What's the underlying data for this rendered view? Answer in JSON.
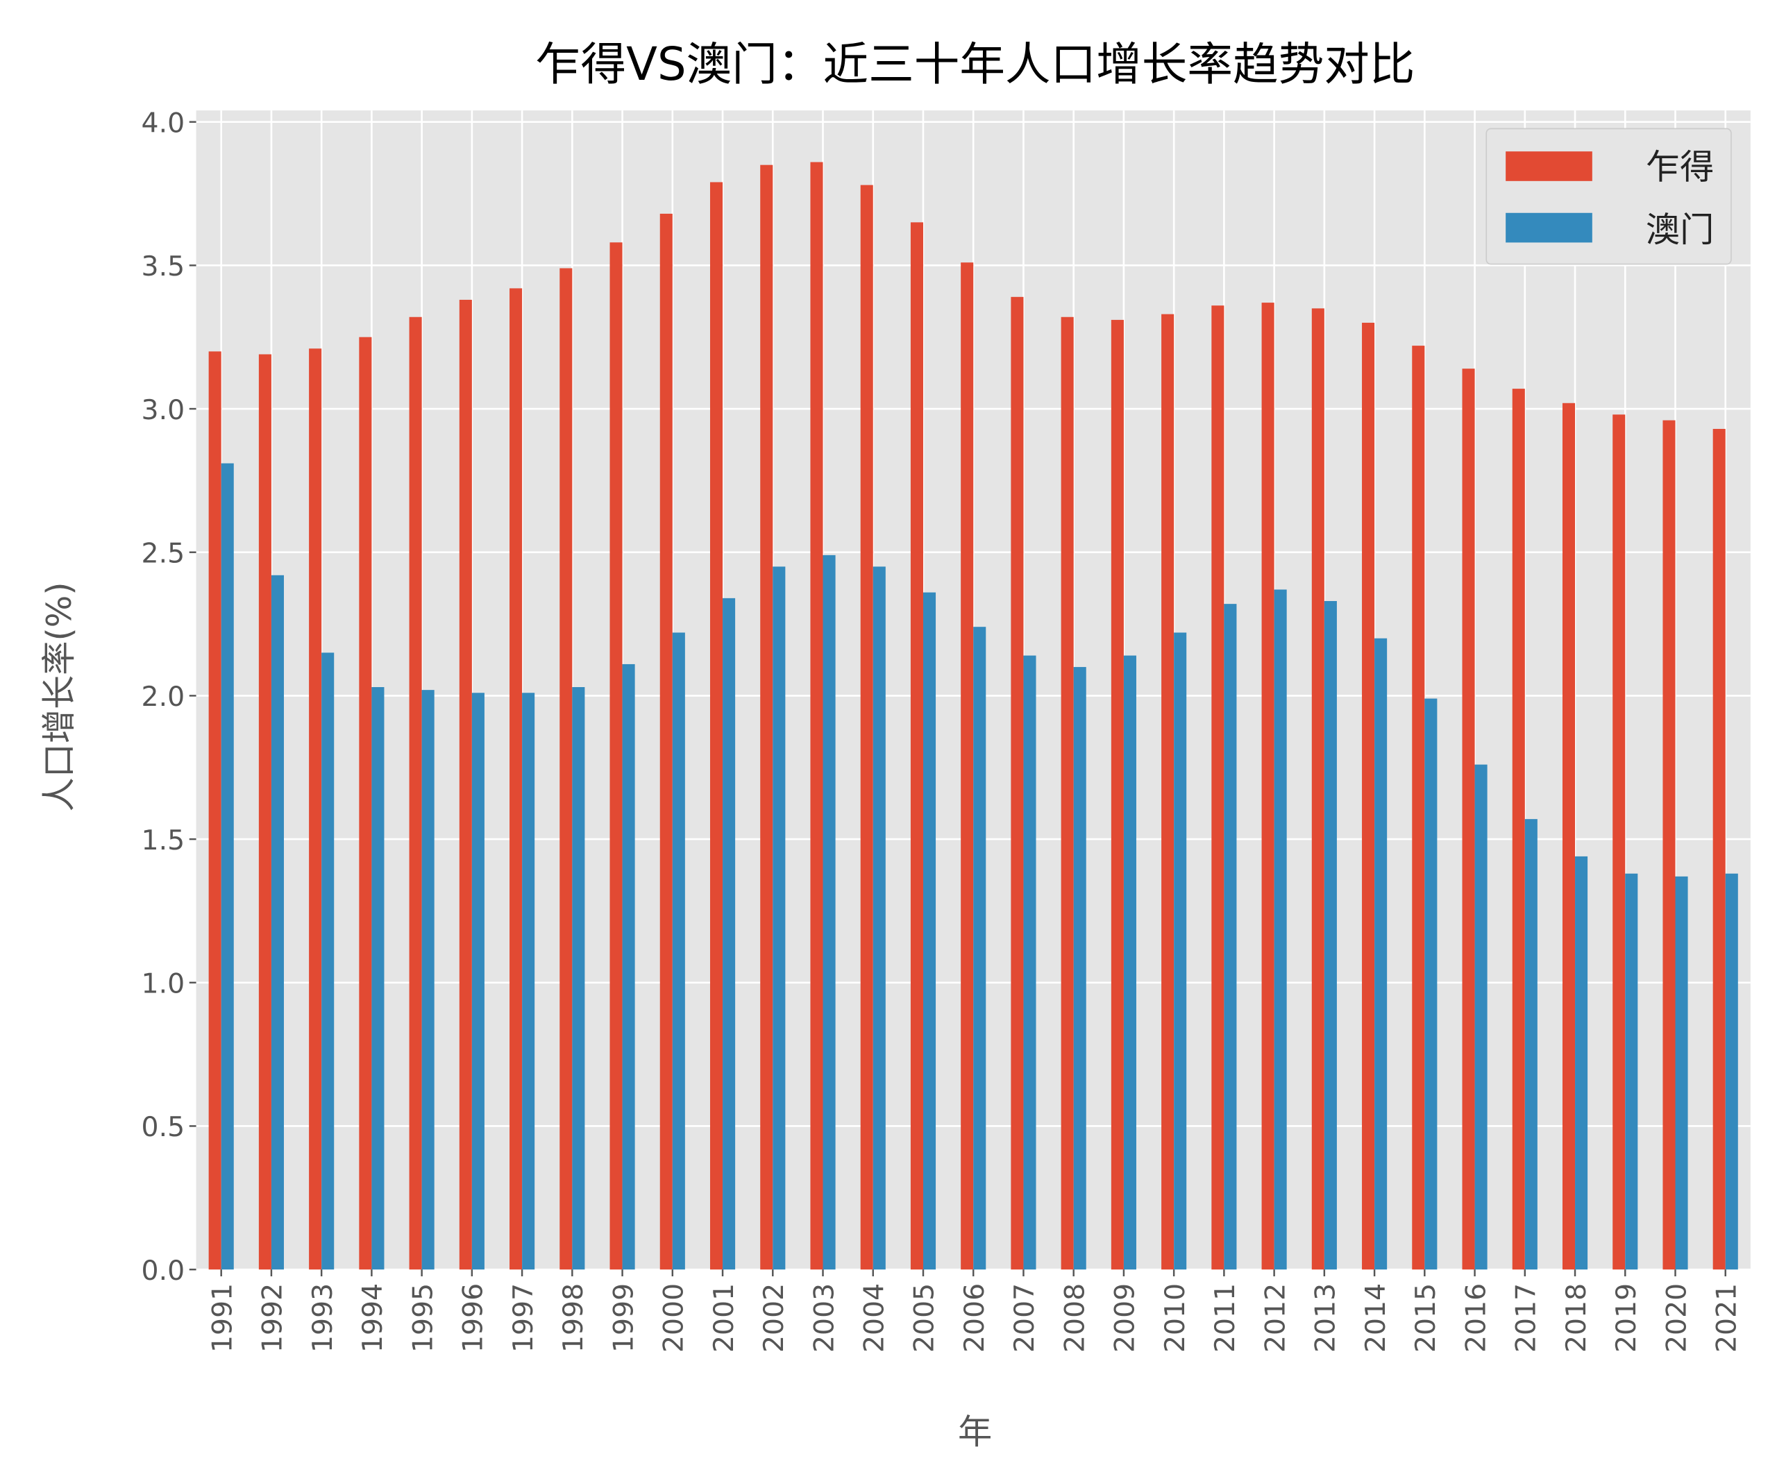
{
  "chart_data": {
    "type": "bar",
    "title": "乍得VS澳门：近三十年人口增长率趋势对比",
    "xlabel": "年",
    "ylabel": "人口增长率(%)",
    "ylim": [
      0,
      4.04
    ],
    "yticks": [
      "0.0",
      "0.5",
      "1.0",
      "1.5",
      "2.0",
      "2.5",
      "3.0",
      "3.5",
      "4.0"
    ],
    "grid": true,
    "legend_position": "top-right",
    "categories": [
      "1991",
      "1992",
      "1993",
      "1994",
      "1995",
      "1996",
      "1997",
      "1998",
      "1999",
      "2000",
      "2001",
      "2002",
      "2003",
      "2004",
      "2005",
      "2006",
      "2007",
      "2008",
      "2009",
      "2010",
      "2011",
      "2012",
      "2013",
      "2014",
      "2015",
      "2016",
      "2017",
      "2018",
      "2019",
      "2020",
      "2021"
    ],
    "series": [
      {
        "name": "乍得",
        "color": "#E24A33",
        "values": [
          3.2,
          3.19,
          3.21,
          3.25,
          3.32,
          3.38,
          3.42,
          3.49,
          3.58,
          3.68,
          3.79,
          3.85,
          3.86,
          3.78,
          3.65,
          3.51,
          3.39,
          3.32,
          3.31,
          3.33,
          3.36,
          3.37,
          3.35,
          3.3,
          3.22,
          3.14,
          3.07,
          3.02,
          2.98,
          2.96,
          2.93
        ]
      },
      {
        "name": "澳门",
        "color": "#348ABD",
        "values": [
          2.81,
          2.42,
          2.15,
          2.03,
          2.02,
          2.01,
          2.01,
          2.03,
          2.11,
          2.22,
          2.34,
          2.45,
          2.49,
          2.45,
          2.36,
          2.24,
          2.14,
          2.1,
          2.14,
          2.22,
          2.32,
          2.37,
          2.33,
          2.2,
          1.99,
          1.76,
          1.57,
          1.44,
          1.38,
          1.37,
          1.38
        ]
      }
    ]
  }
}
